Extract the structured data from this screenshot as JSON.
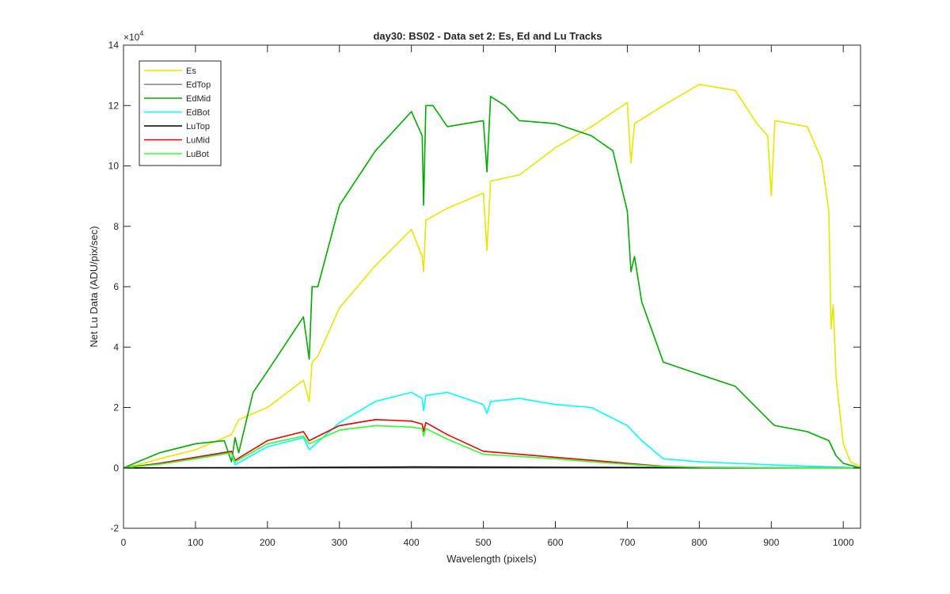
{
  "chart_data": {
    "type": "line",
    "title": "day30: BS02 - Data set 2: Es, Ed and Lu Tracks",
    "xlabel": "Wavelength (pixels)",
    "ylabel": "Net Lu Data (ADU/pix/sec)",
    "exponent_label": "×10",
    "exponent_power": "4",
    "xlim": [
      0,
      1024
    ],
    "ylim": [
      -2,
      14
    ],
    "xticks": [
      0,
      100,
      200,
      300,
      400,
      500,
      600,
      700,
      800,
      900,
      1000
    ],
    "yticks": [
      -2,
      0,
      2,
      4,
      6,
      8,
      10,
      12,
      14
    ],
    "legend_position": "top-left",
    "series": [
      {
        "name": "Es",
        "color": "#e6e600",
        "x": [
          0,
          20,
          50,
          100,
          150,
          160,
          200,
          250,
          258,
          262,
          270,
          300,
          350,
          400,
          415,
          417,
          420,
          450,
          500,
          505,
          510,
          550,
          600,
          650,
          700,
          705,
          710,
          750,
          800,
          850,
          880,
          895,
          900,
          905,
          950,
          970,
          980,
          983,
          986,
          990,
          1000,
          1010,
          1024
        ],
        "y": [
          0,
          0.1,
          0.3,
          0.6,
          1.1,
          1.6,
          2.0,
          2.9,
          2.2,
          3.5,
          3.7,
          5.3,
          6.7,
          7.9,
          7.0,
          6.5,
          8.2,
          8.6,
          9.1,
          7.2,
          9.5,
          9.7,
          10.6,
          11.3,
          12.1,
          10.1,
          11.4,
          12.0,
          12.7,
          12.5,
          11.4,
          11.0,
          9.0,
          11.5,
          11.3,
          10.2,
          8.5,
          4.6,
          5.4,
          3.0,
          0.8,
          0.2,
          0.05
        ]
      },
      {
        "name": "EdTop",
        "color": "#808080",
        "x": [
          0,
          1024
        ],
        "y": [
          0,
          0
        ]
      },
      {
        "name": "EdMid",
        "color": "#00aa00",
        "x": [
          0,
          20,
          50,
          100,
          140,
          150,
          155,
          160,
          180,
          200,
          250,
          258,
          262,
          270,
          300,
          350,
          400,
          415,
          417,
          420,
          430,
          450,
          500,
          505,
          510,
          530,
          550,
          600,
          650,
          680,
          690,
          700,
          705,
          710,
          720,
          750,
          800,
          850,
          900,
          905,
          950,
          980,
          990,
          1000,
          1024
        ],
        "y": [
          0,
          0.2,
          0.5,
          0.8,
          0.9,
          0.2,
          1.0,
          0.5,
          2.5,
          3.2,
          5.0,
          3.6,
          6.0,
          6.0,
          8.7,
          10.5,
          11.8,
          11.0,
          8.7,
          12.0,
          12.0,
          11.3,
          11.5,
          9.8,
          12.3,
          12.0,
          11.5,
          11.4,
          11.0,
          10.5,
          9.5,
          8.5,
          6.5,
          7.0,
          5.5,
          3.5,
          3.1,
          2.7,
          1.5,
          1.4,
          1.2,
          0.9,
          0.4,
          0.15,
          0
        ]
      },
      {
        "name": "EdBot",
        "color": "#00ffff",
        "x": [
          0,
          50,
          100,
          150,
          155,
          200,
          250,
          258,
          300,
          350,
          400,
          415,
          417,
          420,
          450,
          500,
          505,
          510,
          550,
          600,
          650,
          700,
          720,
          750,
          800,
          850,
          900,
          950,
          1000,
          1024
        ],
        "y": [
          0,
          0.15,
          0.35,
          0.5,
          0.1,
          0.7,
          1.0,
          0.6,
          1.5,
          2.2,
          2.5,
          2.3,
          1.9,
          2.4,
          2.5,
          2.1,
          1.8,
          2.2,
          2.3,
          2.1,
          2.0,
          1.4,
          0.9,
          0.3,
          0.2,
          0.15,
          0.1,
          0.06,
          0.02,
          0
        ]
      },
      {
        "name": "LuTop",
        "color": "#000000",
        "x": [
          0,
          200,
          400,
          600,
          800,
          1024
        ],
        "y": [
          0,
          0.01,
          0.03,
          0.02,
          0.005,
          0
        ]
      },
      {
        "name": "LuMid",
        "color": "#e60000",
        "x": [
          0,
          50,
          100,
          150,
          155,
          200,
          250,
          258,
          300,
          350,
          400,
          415,
          417,
          420,
          450,
          500,
          550,
          600,
          650,
          700,
          750,
          800,
          1024
        ],
        "y": [
          0,
          0.15,
          0.35,
          0.55,
          0.25,
          0.9,
          1.2,
          0.9,
          1.4,
          1.6,
          1.55,
          1.45,
          1.2,
          1.5,
          1.1,
          0.55,
          0.45,
          0.35,
          0.25,
          0.15,
          0.05,
          0.02,
          0
        ]
      },
      {
        "name": "LuBot",
        "color": "#33ff33",
        "x": [
          0,
          50,
          100,
          150,
          155,
          200,
          250,
          258,
          300,
          350,
          400,
          415,
          417,
          420,
          450,
          500,
          550,
          600,
          650,
          700,
          750,
          800,
          1024
        ],
        "y": [
          0,
          0.12,
          0.3,
          0.5,
          0.2,
          0.8,
          1.05,
          0.8,
          1.25,
          1.4,
          1.35,
          1.3,
          1.05,
          1.3,
          0.95,
          0.45,
          0.38,
          0.3,
          0.2,
          0.12,
          0.04,
          0.02,
          0
        ]
      }
    ]
  }
}
